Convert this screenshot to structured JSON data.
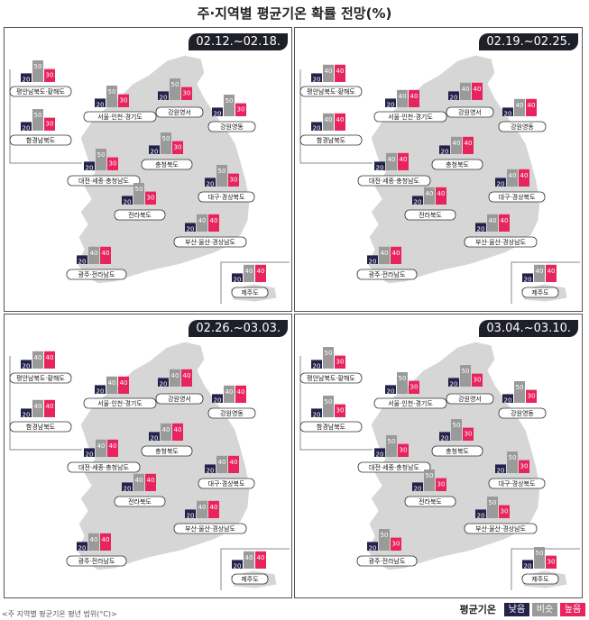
{
  "title": "주·지역별 평균기온 확률 전망(%)",
  "footnote": "<주 지역별 평균기온 평년 범위(°C)>",
  "legend": {
    "title": "평균기온",
    "items": [
      {
        "label": "낮음",
        "color": "#22224a"
      },
      {
        "label": "비슷",
        "color": "#9a9a9a"
      },
      {
        "label": "높음",
        "color": "#e8245e"
      }
    ]
  },
  "colors": {
    "low": "#22224a",
    "similar": "#9a9a9a",
    "high": "#e8245e",
    "land": "#d6d6d6",
    "sea": "#ffffff"
  },
  "chart_data": [
    {
      "type": "bar",
      "period": "02.12.~02.18.",
      "series_names": [
        "낮음",
        "비슷",
        "높음"
      ],
      "regions": [
        {
          "name": "평안남북도·황해도",
          "values": [
            20,
            50,
            30
          ]
        },
        {
          "name": "함경남북도",
          "values": [
            20,
            50,
            30
          ]
        },
        {
          "name": "서울·인천·경기도",
          "values": [
            20,
            50,
            30
          ]
        },
        {
          "name": "강원영서",
          "values": [
            20,
            50,
            30
          ]
        },
        {
          "name": "강원영동",
          "values": [
            20,
            50,
            30
          ]
        },
        {
          "name": "충청북도",
          "values": [
            20,
            50,
            30
          ]
        },
        {
          "name": "대전·세종·충청남도",
          "values": [
            20,
            50,
            30
          ]
        },
        {
          "name": "대구·경상북도",
          "values": [
            20,
            50,
            30
          ]
        },
        {
          "name": "전라북도",
          "values": [
            20,
            50,
            30
          ]
        },
        {
          "name": "부산·울산·경상남도",
          "values": [
            20,
            40,
            40
          ]
        },
        {
          "name": "광주·전라남도",
          "values": [
            20,
            40,
            40
          ]
        },
        {
          "name": "제주도",
          "values": [
            20,
            40,
            40
          ]
        }
      ]
    },
    {
      "type": "bar",
      "period": "02.19.~02.25.",
      "series_names": [
        "낮음",
        "비슷",
        "높음"
      ],
      "regions": [
        {
          "name": "평안남북도·황해도",
          "values": [
            20,
            40,
            40
          ]
        },
        {
          "name": "함경남북도",
          "values": [
            20,
            40,
            40
          ]
        },
        {
          "name": "서울·인천·경기도",
          "values": [
            20,
            40,
            40
          ]
        },
        {
          "name": "강원영서",
          "values": [
            20,
            40,
            40
          ]
        },
        {
          "name": "강원영동",
          "values": [
            20,
            40,
            40
          ]
        },
        {
          "name": "충청북도",
          "values": [
            20,
            40,
            40
          ]
        },
        {
          "name": "대전·세종·충청남도",
          "values": [
            20,
            40,
            40
          ]
        },
        {
          "name": "대구·경상북도",
          "values": [
            20,
            40,
            40
          ]
        },
        {
          "name": "전라북도",
          "values": [
            20,
            40,
            40
          ]
        },
        {
          "name": "부산·울산·경상남도",
          "values": [
            20,
            40,
            40
          ]
        },
        {
          "name": "광주·전라남도",
          "values": [
            20,
            40,
            40
          ]
        },
        {
          "name": "제주도",
          "values": [
            20,
            40,
            40
          ]
        }
      ]
    },
    {
      "type": "bar",
      "period": "02.26.~03.03.",
      "series_names": [
        "낮음",
        "비슷",
        "높음"
      ],
      "regions": [
        {
          "name": "평안남북도·황해도",
          "values": [
            20,
            40,
            40
          ]
        },
        {
          "name": "함경남북도",
          "values": [
            20,
            40,
            40
          ]
        },
        {
          "name": "서울·인천·경기도",
          "values": [
            20,
            40,
            40
          ]
        },
        {
          "name": "강원영서",
          "values": [
            20,
            40,
            40
          ]
        },
        {
          "name": "강원영동",
          "values": [
            20,
            40,
            40
          ]
        },
        {
          "name": "충청북도",
          "values": [
            20,
            40,
            40
          ]
        },
        {
          "name": "대전·세종·충청남도",
          "values": [
            20,
            40,
            40
          ]
        },
        {
          "name": "대구·경상북도",
          "values": [
            20,
            40,
            40
          ]
        },
        {
          "name": "전라북도",
          "values": [
            20,
            40,
            40
          ]
        },
        {
          "name": "부산·울산·경상남도",
          "values": [
            20,
            40,
            40
          ]
        },
        {
          "name": "광주·전라남도",
          "values": [
            20,
            40,
            40
          ]
        },
        {
          "name": "제주도",
          "values": [
            20,
            40,
            40
          ]
        }
      ]
    },
    {
      "type": "bar",
      "period": "03.04.~03.10.",
      "series_names": [
        "낮음",
        "비슷",
        "높음"
      ],
      "regions": [
        {
          "name": "평안남북도·황해도",
          "values": [
            20,
            50,
            30
          ]
        },
        {
          "name": "함경남북도",
          "values": [
            20,
            50,
            30
          ]
        },
        {
          "name": "서울·인천·경기도",
          "values": [
            20,
            50,
            30
          ]
        },
        {
          "name": "강원영서",
          "values": [
            20,
            50,
            30
          ]
        },
        {
          "name": "강원영동",
          "values": [
            20,
            50,
            30
          ]
        },
        {
          "name": "충청북도",
          "values": [
            20,
            50,
            30
          ]
        },
        {
          "name": "대전·세종·충청남도",
          "values": [
            20,
            50,
            30
          ]
        },
        {
          "name": "대구·경상북도",
          "values": [
            20,
            50,
            30
          ]
        },
        {
          "name": "전라북도",
          "values": [
            20,
            50,
            30
          ]
        },
        {
          "name": "부산·울산·경상남도",
          "values": [
            20,
            50,
            30
          ]
        },
        {
          "name": "광주·전라남도",
          "values": [
            20,
            50,
            30
          ]
        },
        {
          "name": "제주도",
          "values": [
            20,
            50,
            30
          ]
        }
      ]
    }
  ]
}
